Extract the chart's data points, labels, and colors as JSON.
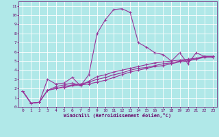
{
  "title": "",
  "xlabel": "Windchill (Refroidissement éolien,°C)",
  "background_color": "#b0e8e8",
  "grid_color": "#ffffff",
  "line_color": "#993399",
  "xlim": [
    -0.5,
    23.5
  ],
  "ylim": [
    0,
    11.5
  ],
  "xticks": [
    0,
    1,
    2,
    3,
    4,
    5,
    6,
    7,
    8,
    9,
    10,
    11,
    12,
    13,
    14,
    15,
    16,
    17,
    18,
    19,
    20,
    21,
    22,
    23
  ],
  "yticks": [
    0,
    1,
    2,
    3,
    4,
    5,
    6,
    7,
    8,
    9,
    10,
    11
  ],
  "series": [
    [
      1.7,
      0.4,
      0.5,
      3.0,
      2.5,
      2.6,
      3.2,
      2.3,
      3.5,
      8.0,
      9.5,
      10.6,
      10.7,
      10.3,
      7.0,
      6.5,
      5.9,
      5.7,
      5.0,
      5.9,
      4.7,
      5.9,
      5.5,
      5.5
    ],
    [
      1.7,
      0.4,
      0.5,
      1.8,
      2.2,
      2.4,
      2.6,
      2.3,
      2.8,
      3.3,
      3.5,
      3.8,
      4.0,
      4.2,
      4.4,
      4.6,
      4.8,
      4.9,
      5.0,
      5.1,
      5.2,
      5.3,
      5.5,
      5.5
    ],
    [
      1.7,
      0.4,
      0.5,
      1.8,
      2.0,
      2.2,
      2.4,
      2.5,
      2.7,
      3.0,
      3.2,
      3.5,
      3.7,
      4.0,
      4.2,
      4.3,
      4.5,
      4.7,
      4.8,
      5.0,
      5.1,
      5.2,
      5.4,
      5.4
    ],
    [
      1.7,
      0.4,
      0.5,
      1.8,
      2.0,
      2.1,
      2.3,
      2.4,
      2.5,
      2.7,
      2.9,
      3.2,
      3.5,
      3.8,
      4.0,
      4.2,
      4.4,
      4.5,
      4.7,
      4.9,
      5.0,
      5.2,
      5.5,
      5.5
    ]
  ],
  "marker": "+",
  "markersize": 3,
  "linewidth": 0.8,
  "figsize": [
    3.2,
    2.0
  ],
  "dpi": 100,
  "label_fontsize": 4.5,
  "tick_fontsize": 4.5,
  "xlabel_fontsize": 5.0
}
